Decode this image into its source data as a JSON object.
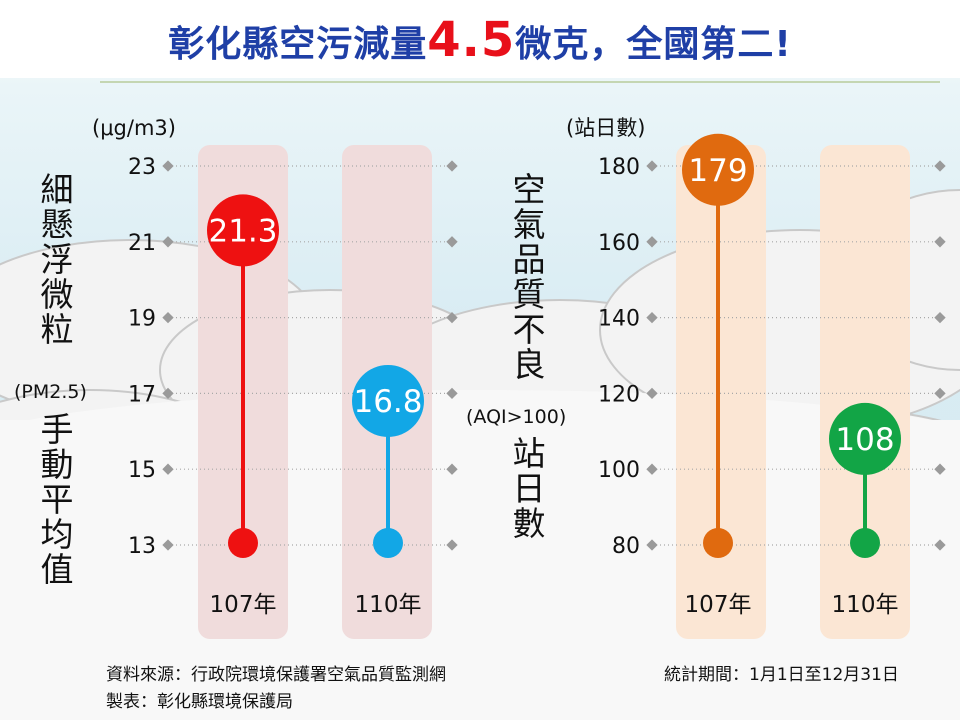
{
  "title": {
    "prefix": "彰化縣空污減量",
    "highlight": "4.5",
    "suffix": "微克，全國第二!"
  },
  "colors": {
    "title": "#1f3fa6",
    "highlight": "#e8101a",
    "left_column": "#f0dcdc",
    "right_column": "#fbe6d4"
  },
  "left_side_label": {
    "part1": "細懸浮微粒",
    "paren": "(PM2.5)",
    "part2": "手動平均值"
  },
  "right_side_label": {
    "part1": "空氣品質不良",
    "paren": "(AQI>100)",
    "part2": "站日數"
  },
  "chart_data": [
    {
      "type": "lollipop",
      "unit_label": "(μg/m3)",
      "yticks": [
        23,
        21,
        19,
        17,
        15,
        13
      ],
      "ylim": [
        13,
        23
      ],
      "categories": [
        "107年",
        "110年"
      ],
      "values": [
        21.3,
        16.8
      ],
      "colors": [
        "#ee1111",
        "#12a7e6"
      ]
    },
    {
      "type": "lollipop",
      "unit_label": "(站日數)",
      "yticks": [
        180,
        160,
        140,
        120,
        100,
        80
      ],
      "ylim": [
        80,
        180
      ],
      "categories": [
        "107年",
        "110年"
      ],
      "values": [
        179,
        108
      ],
      "colors": [
        "#e06a0f",
        "#12a546"
      ]
    }
  ],
  "footer": {
    "source": "資料來源：行政院環境保護署空氣品質監測網",
    "maker": "製表：彰化縣環境保護局",
    "period": "統計期間：1月1日至12月31日"
  }
}
